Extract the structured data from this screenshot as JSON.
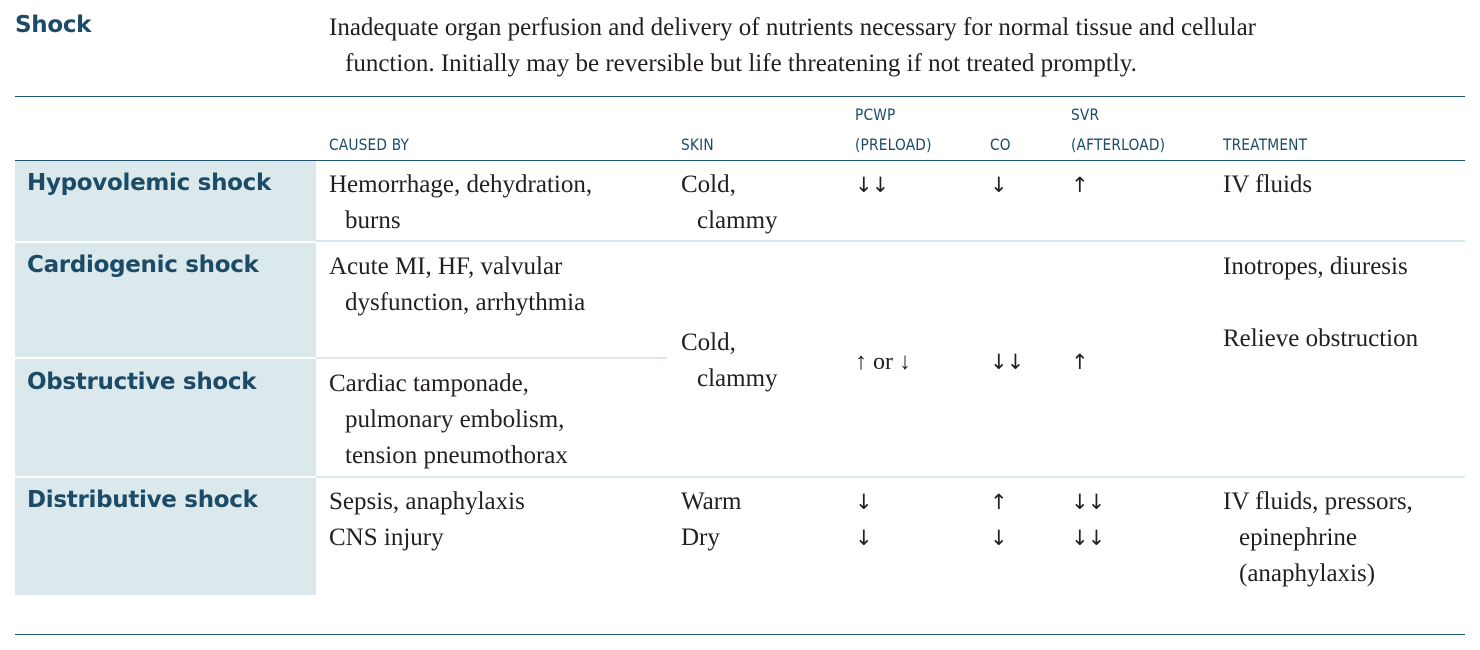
{
  "header": {
    "title": "Shock",
    "definition_line1": "Inadequate organ perfusion and delivery of nutrients necessary for normal tissue and cellular",
    "definition_line2": "function. Initially may be reversible but life threatening if not treated promptly."
  },
  "columns": {
    "caused_by": "CAUSED BY",
    "skin": "SKIN",
    "pcwp_line1": "PCWP",
    "pcwp_line2": "(PRELOAD)",
    "co": "CO",
    "svr_line1": "SVR",
    "svr_line2": "(AFTERLOAD)",
    "treatment": "TREATMENT"
  },
  "rows": {
    "hypovolemic": {
      "label": "Hypovolemic shock",
      "cause_line1": "Hemorrhage, dehydration,",
      "cause_line2": "burns",
      "skin_line1": "Cold,",
      "skin_line2": "clammy",
      "pcwp": "↓↓",
      "co": "↓",
      "svr": "↑",
      "treatment": "IV fluids"
    },
    "cardiogenic": {
      "label": "Cardiogenic shock",
      "cause_line1": "Acute MI, HF, valvular",
      "cause_line2": "dysfunction, arrhythmia",
      "treatment": "Inotropes, diuresis"
    },
    "obstructive": {
      "label": "Obstructive shock",
      "cause_line1": "Cardiac tamponade,",
      "cause_line2": "pulmonary embolism,",
      "cause_line3": "tension pneumothorax",
      "treatment": "Relieve obstruction"
    },
    "cardio_obstructive_shared": {
      "skin_line1": "Cold,",
      "skin_line2": "clammy",
      "pcwp": "↑ or ↓",
      "co": "↓↓",
      "svr": "↑"
    },
    "distributive": {
      "label": "Distributive shock",
      "cause_line1": "Sepsis, anaphylaxis",
      "cause_line2": "CNS injury",
      "skin_line1": "Warm",
      "skin_line2": "Dry",
      "pcwp_line1": "↓",
      "pcwp_line2": "↓",
      "co_line1": "↑",
      "co_line2": "↓",
      "svr_line1": "↓↓",
      "svr_line2": "↓↓",
      "treatment_line1": "IV fluids, pressors,",
      "treatment_line2": "epinephrine",
      "treatment_line3": "(anaphylaxis)"
    }
  }
}
